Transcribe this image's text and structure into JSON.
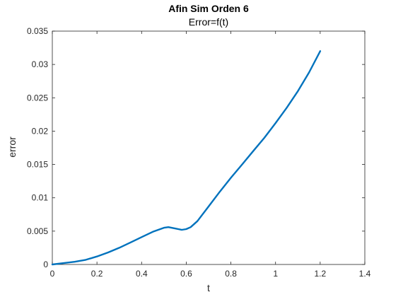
{
  "chart_data": {
    "type": "line",
    "title": "Afin Sim Orden 6",
    "subtitle": "Error=f(t)",
    "xlabel": "t",
    "ylabel": "error",
    "xlim": [
      0,
      1.4
    ],
    "ylim": [
      0,
      0.035
    ],
    "xticks": [
      0,
      0.2,
      0.4,
      0.6,
      0.8,
      1,
      1.2,
      1.4
    ],
    "yticks": [
      0,
      0.005,
      0.01,
      0.015,
      0.02,
      0.025,
      0.03,
      0.035
    ],
    "xtick_labels": [
      "0",
      "0.2",
      "0.4",
      "0.6",
      "0.8",
      "1",
      "1.2",
      "1.4"
    ],
    "ytick_labels": [
      "0",
      "0.005",
      "0.01",
      "0.015",
      "0.02",
      "0.025",
      "0.03",
      "0.035"
    ],
    "grid": false,
    "series": [
      {
        "color": "#0072BD",
        "x": [
          0,
          0.05,
          0.1,
          0.15,
          0.2,
          0.25,
          0.3,
          0.35,
          0.4,
          0.45,
          0.5,
          0.52,
          0.55,
          0.58,
          0.6,
          0.62,
          0.65,
          0.7,
          0.75,
          0.8,
          0.85,
          0.9,
          0.95,
          1.0,
          1.05,
          1.1,
          1.15,
          1.2
        ],
        "y": [
          0,
          0.0002,
          0.0004,
          0.0007,
          0.0012,
          0.0018,
          0.0025,
          0.0033,
          0.0041,
          0.0049,
          0.0055,
          0.0056,
          0.0054,
          0.0052,
          0.0053,
          0.0056,
          0.0065,
          0.0087,
          0.0109,
          0.013,
          0.015,
          0.017,
          0.019,
          0.0212,
          0.0235,
          0.026,
          0.0288,
          0.032
        ]
      }
    ]
  }
}
